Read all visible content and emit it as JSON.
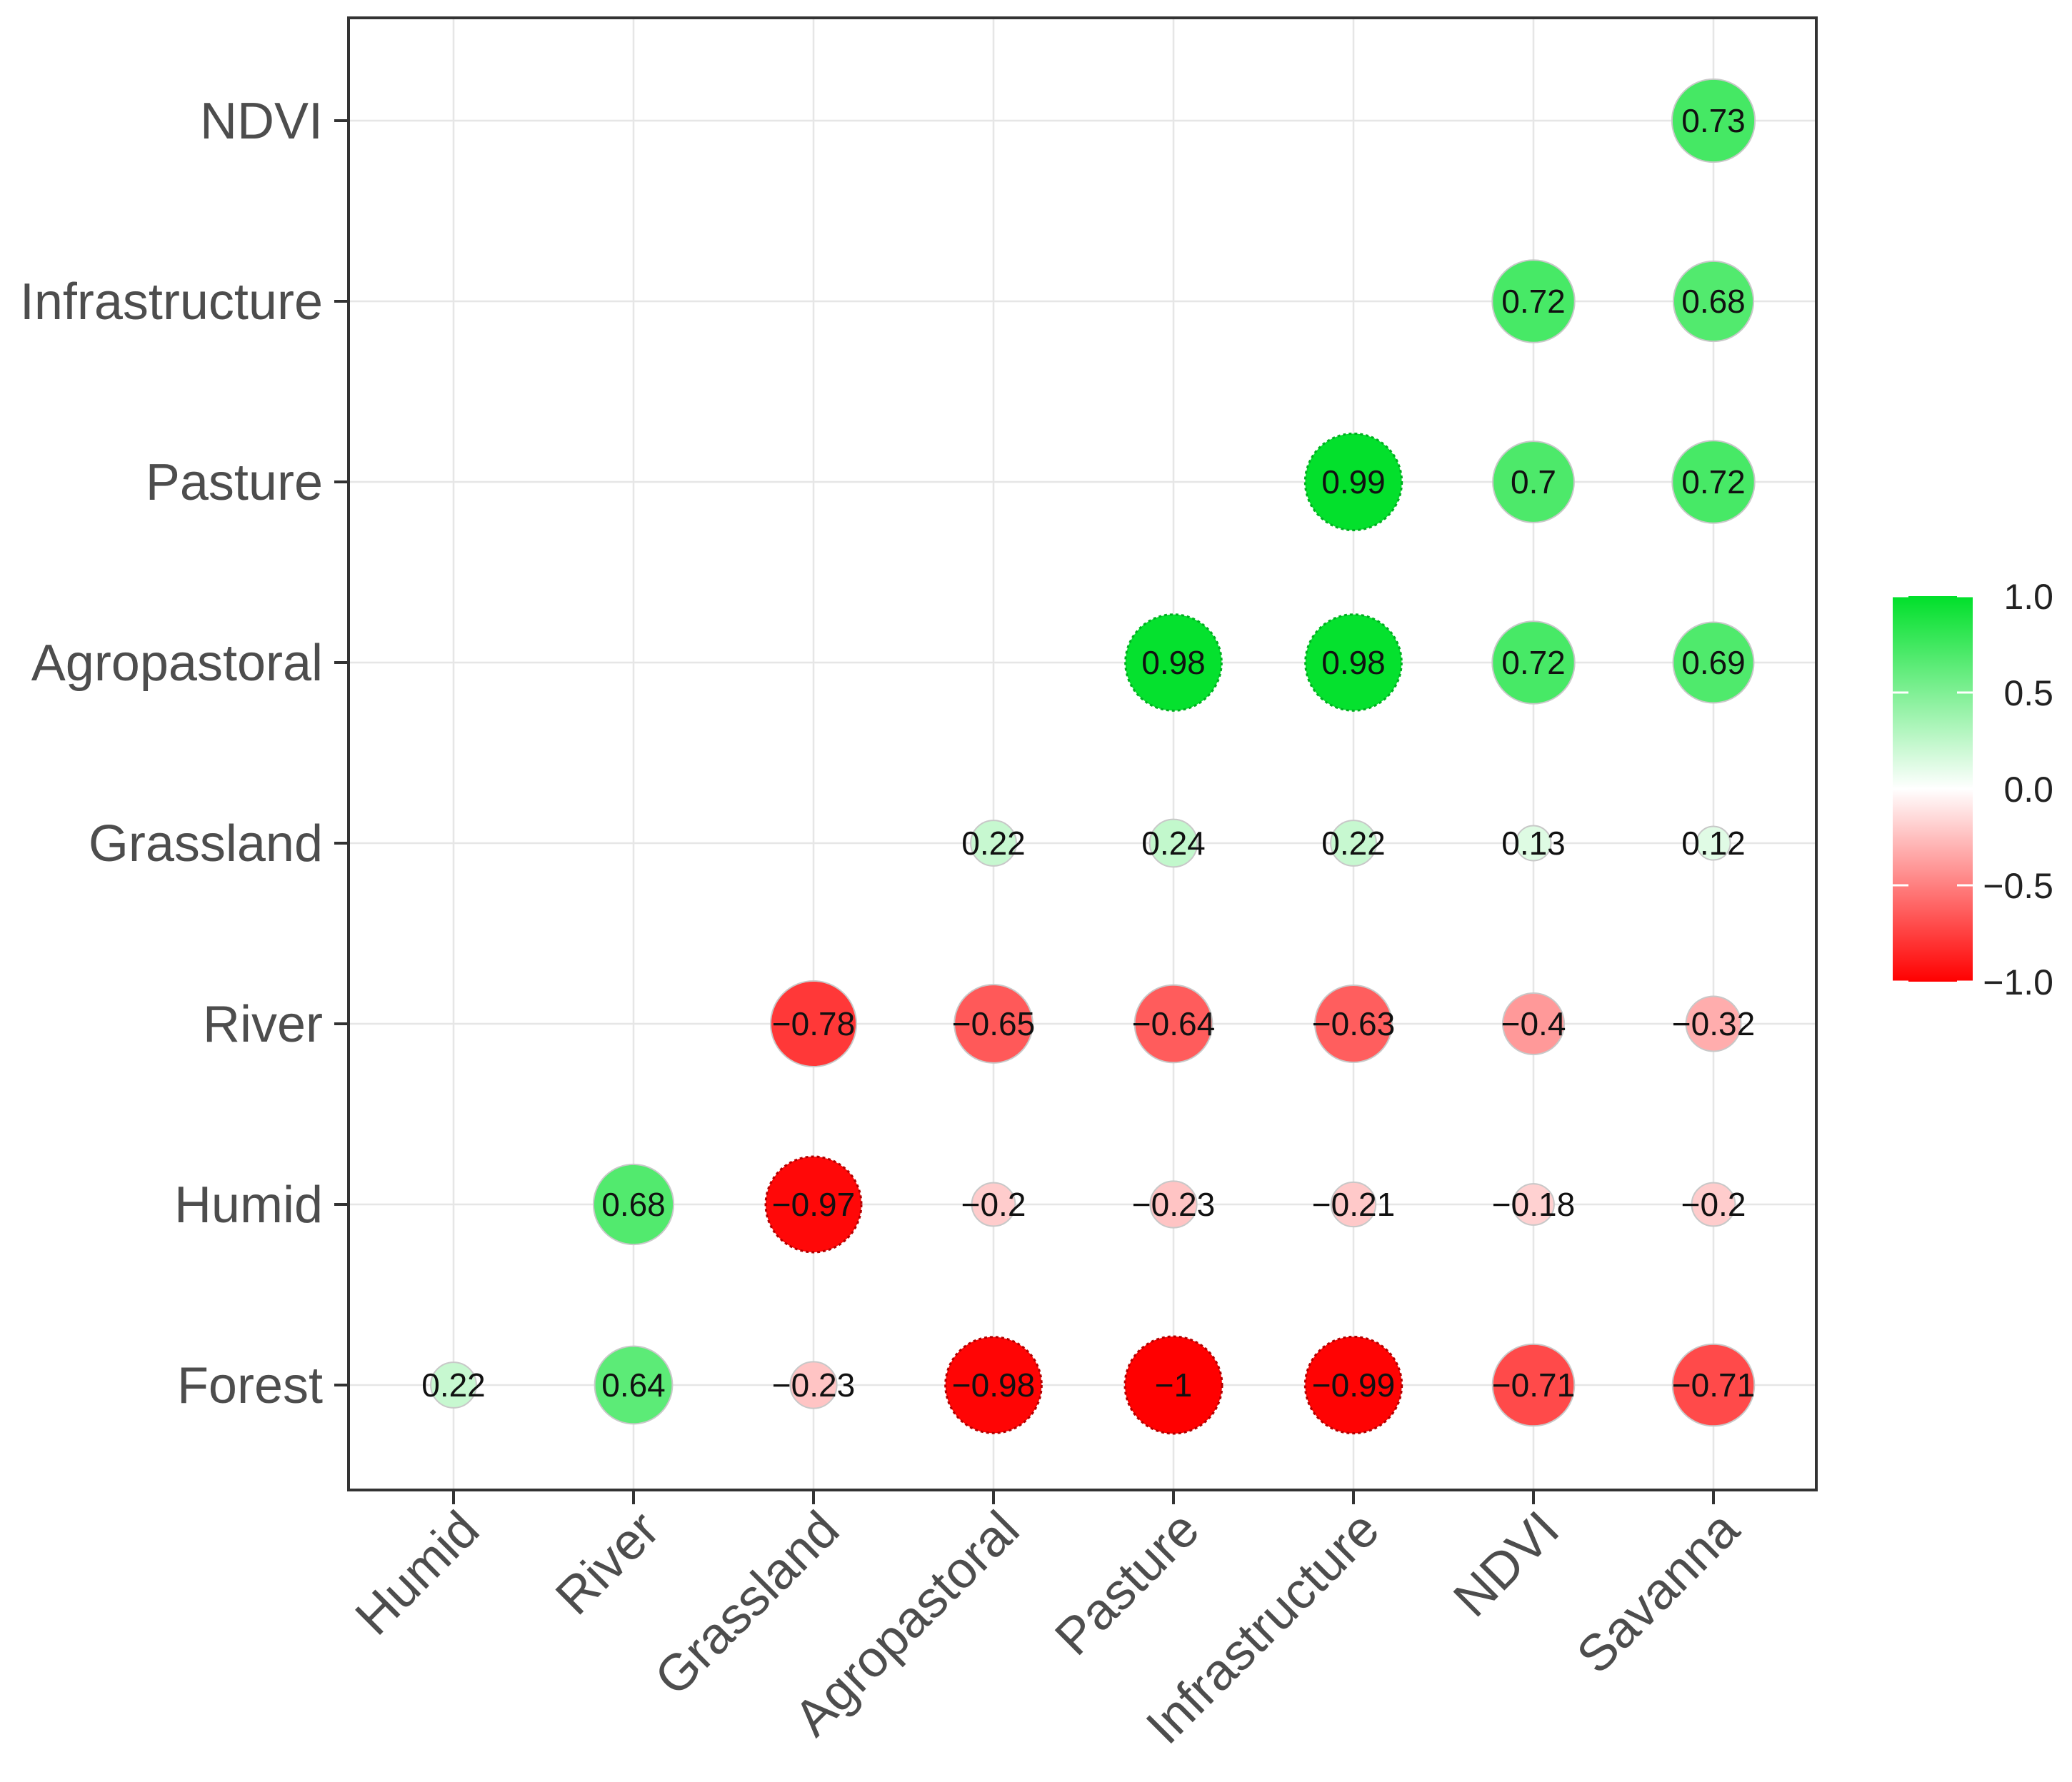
{
  "chart_data": {
    "type": "correlation-matrix",
    "title": "",
    "xlabel": "",
    "ylabel": "",
    "x_categories": [
      "Humid",
      "River",
      "Grassland",
      "Agropastoral",
      "Pasture",
      "Infrastructure",
      "NDVI",
      "Savanna"
    ],
    "y_categories": [
      "Forest",
      "Humid",
      "River",
      "Grassland",
      "Agropastoral",
      "Pasture",
      "Infrastructure",
      "NDVI"
    ],
    "cells": [
      {
        "row": "Forest",
        "col": "Humid",
        "value": 0.22,
        "label": "0.22"
      },
      {
        "row": "Forest",
        "col": "River",
        "value": 0.64,
        "label": "0.64"
      },
      {
        "row": "Forest",
        "col": "Grassland",
        "value": -0.23,
        "label": "−0.23"
      },
      {
        "row": "Forest",
        "col": "Agropastoral",
        "value": -0.98,
        "label": "−0.98"
      },
      {
        "row": "Forest",
        "col": "Pasture",
        "value": -1,
        "label": "−1"
      },
      {
        "row": "Forest",
        "col": "Infrastructure",
        "value": -0.99,
        "label": "−0.99"
      },
      {
        "row": "Forest",
        "col": "NDVI",
        "value": -0.71,
        "label": "−0.71"
      },
      {
        "row": "Forest",
        "col": "Savanna",
        "value": -0.71,
        "label": "−0.71"
      },
      {
        "row": "Humid",
        "col": "River",
        "value": 0.68,
        "label": "0.68"
      },
      {
        "row": "Humid",
        "col": "Grassland",
        "value": -0.97,
        "label": "−0.97"
      },
      {
        "row": "Humid",
        "col": "Agropastoral",
        "value": -0.2,
        "label": "−0.2"
      },
      {
        "row": "Humid",
        "col": "Pasture",
        "value": -0.23,
        "label": "−0.23"
      },
      {
        "row": "Humid",
        "col": "Infrastructure",
        "value": -0.21,
        "label": "−0.21"
      },
      {
        "row": "Humid",
        "col": "NDVI",
        "value": -0.18,
        "label": "−0.18"
      },
      {
        "row": "Humid",
        "col": "Savanna",
        "value": -0.2,
        "label": "−0.2"
      },
      {
        "row": "River",
        "col": "Grassland",
        "value": -0.78,
        "label": "−0.78"
      },
      {
        "row": "River",
        "col": "Agropastoral",
        "value": -0.65,
        "label": "−0.65"
      },
      {
        "row": "River",
        "col": "Pasture",
        "value": -0.64,
        "label": "−0.64"
      },
      {
        "row": "River",
        "col": "Infrastructure",
        "value": -0.63,
        "label": "−0.63"
      },
      {
        "row": "River",
        "col": "NDVI",
        "value": -0.4,
        "label": "−0.4"
      },
      {
        "row": "River",
        "col": "Savanna",
        "value": -0.32,
        "label": "−0.32"
      },
      {
        "row": "Grassland",
        "col": "Agropastoral",
        "value": 0.22,
        "label": "0.22"
      },
      {
        "row": "Grassland",
        "col": "Pasture",
        "value": 0.24,
        "label": "0.24"
      },
      {
        "row": "Grassland",
        "col": "Infrastructure",
        "value": 0.22,
        "label": "0.22"
      },
      {
        "row": "Grassland",
        "col": "NDVI",
        "value": 0.13,
        "label": "0.13"
      },
      {
        "row": "Grassland",
        "col": "Savanna",
        "value": 0.12,
        "label": "0.12"
      },
      {
        "row": "Agropastoral",
        "col": "Pasture",
        "value": 0.98,
        "label": "0.98"
      },
      {
        "row": "Agropastoral",
        "col": "Infrastructure",
        "value": 0.98,
        "label": "0.98"
      },
      {
        "row": "Agropastoral",
        "col": "NDVI",
        "value": 0.72,
        "label": "0.72"
      },
      {
        "row": "Agropastoral",
        "col": "Savanna",
        "value": 0.69,
        "label": "0.69"
      },
      {
        "row": "Pasture",
        "col": "Infrastructure",
        "value": 0.99,
        "label": "0.99"
      },
      {
        "row": "Pasture",
        "col": "NDVI",
        "value": 0.7,
        "label": "0.7"
      },
      {
        "row": "Pasture",
        "col": "Savanna",
        "value": 0.72,
        "label": "0.72"
      },
      {
        "row": "Infrastructure",
        "col": "NDVI",
        "value": 0.72,
        "label": "0.72"
      },
      {
        "row": "Infrastructure",
        "col": "Savanna",
        "value": 0.68,
        "label": "0.68"
      },
      {
        "row": "NDVI",
        "col": "Savanna",
        "value": 0.73,
        "label": "0.73"
      }
    ],
    "color_scale": {
      "low": "#ff0000",
      "mid": "#ffffff",
      "high": "#00e02a",
      "range": [
        -1,
        1
      ],
      "ticks": [
        1.0,
        0.5,
        0.0,
        -0.5,
        -1.0
      ],
      "tick_labels": [
        "1.0",
        "0.5",
        "0.0",
        "−0.5",
        "−1.0"
      ]
    },
    "legend_position": "right",
    "grid": true
  }
}
